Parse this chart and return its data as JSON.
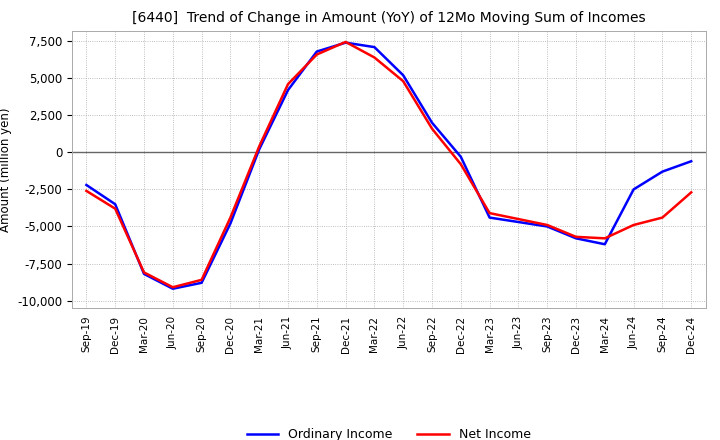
{
  "title": "[6440]  Trend of Change in Amount (YoY) of 12Mo Moving Sum of Incomes",
  "ylabel": "Amount (million yen)",
  "ylim": [
    -10500,
    8200
  ],
  "yticks": [
    7500,
    5000,
    2500,
    0,
    -2500,
    -5000,
    -7500,
    -10000
  ],
  "background_color": "#ffffff",
  "grid_color": "#aaaaaa",
  "x_labels": [
    "Sep-19",
    "Dec-19",
    "Mar-20",
    "Jun-20",
    "Sep-20",
    "Dec-20",
    "Mar-21",
    "Jun-21",
    "Sep-21",
    "Dec-21",
    "Mar-22",
    "Jun-22",
    "Sep-22",
    "Dec-22",
    "Mar-23",
    "Jun-23",
    "Sep-23",
    "Dec-23",
    "Mar-24",
    "Jun-24",
    "Sep-24",
    "Dec-24"
  ],
  "ordinary_income": [
    -2200,
    -3500,
    -8200,
    -9200,
    -8800,
    -4800,
    200,
    4200,
    6800,
    7400,
    7100,
    5200,
    2000,
    -300,
    -4400,
    -4700,
    -5000,
    -5800,
    -6200,
    -2500,
    -1300,
    -600
  ],
  "net_income": [
    -2600,
    -3800,
    -8100,
    -9100,
    -8600,
    -4400,
    400,
    4600,
    6600,
    7450,
    6400,
    4800,
    1600,
    -800,
    -4100,
    -4500,
    -4900,
    -5700,
    -5800,
    -4900,
    -4400,
    -2700
  ],
  "ordinary_color": "#0000ff",
  "net_color": "#ff0000",
  "line_width": 1.8
}
